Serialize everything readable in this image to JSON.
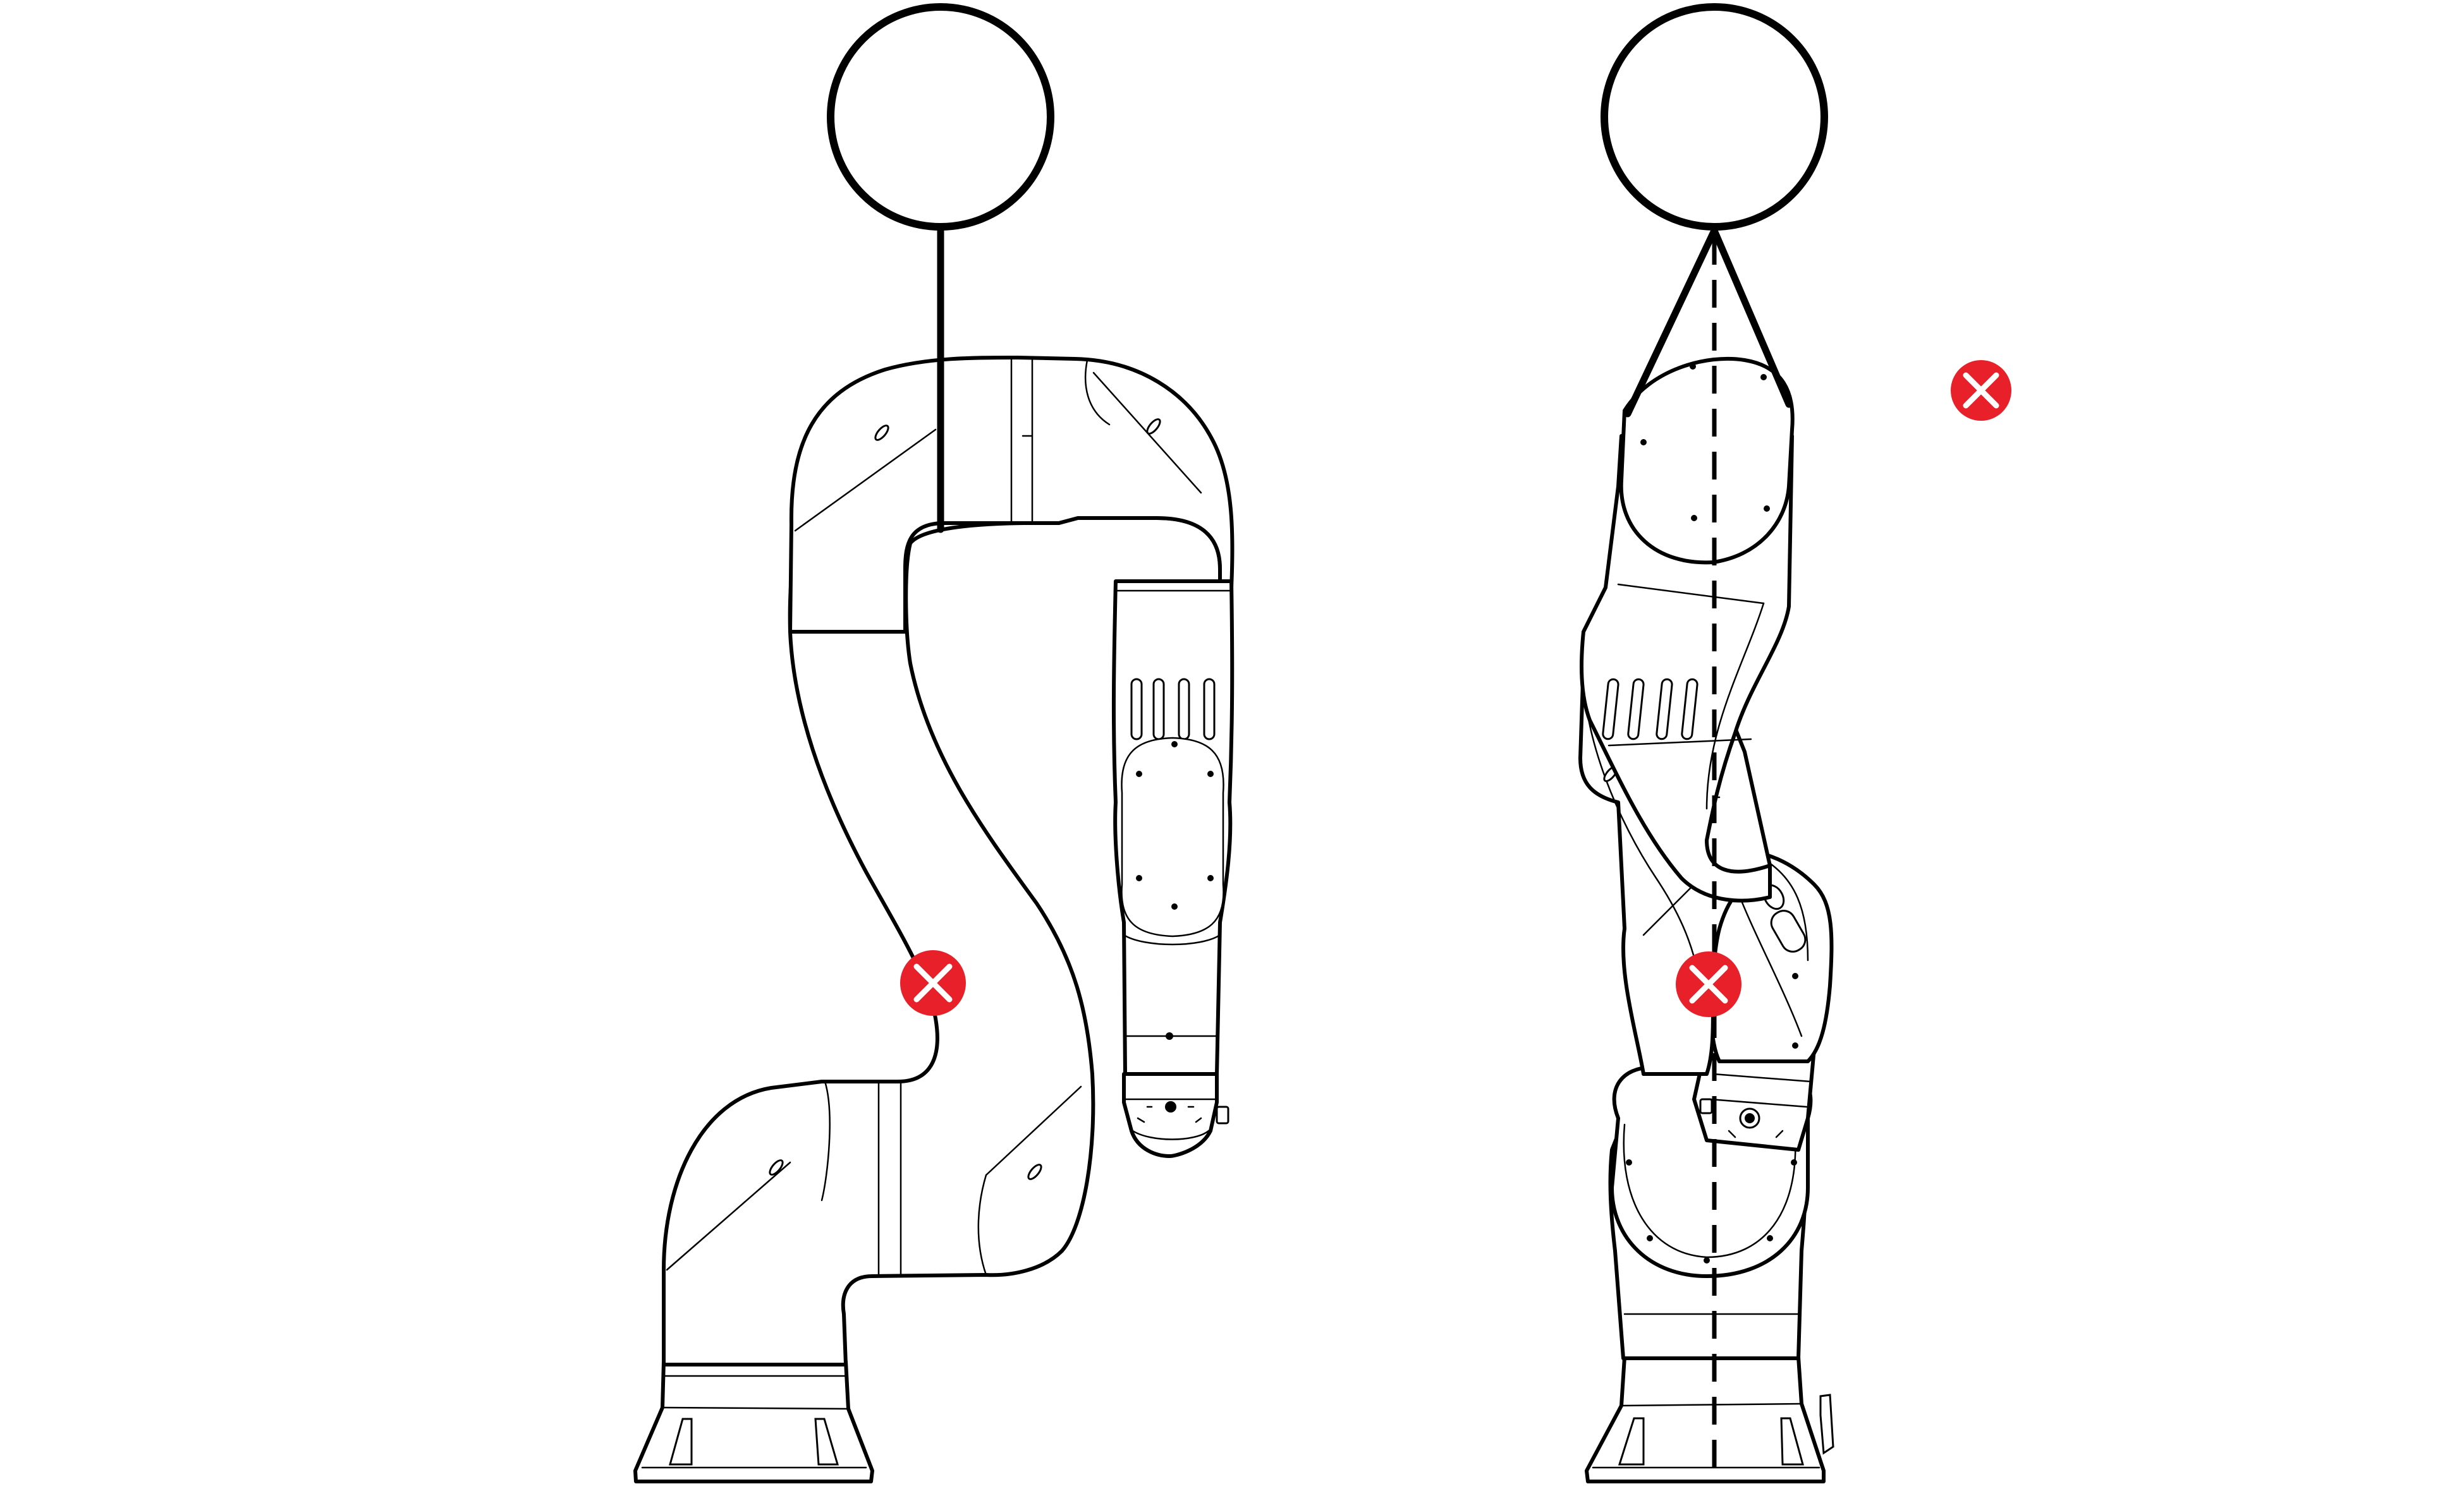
{
  "figure": {
    "views": [
      {
        "id": "left-view",
        "lift_method": "single-sling",
        "crane_hook": "circle",
        "lift_point": "on-upper-arm",
        "prohibited_markers": 1
      },
      {
        "id": "right-view",
        "lift_method": "two-sling-bridle",
        "crane_hook": "circle",
        "center_line": "dashed-vertical",
        "prohibited_markers": 2
      }
    ],
    "colors": {
      "line": "#000000",
      "background": "#ffffff",
      "prohibited_marker": "#e8202a",
      "prohibited_cross": "#ffffff"
    },
    "icons": {
      "prohibited": "x-in-circle-icon",
      "crane_hook": "hook-ring-icon"
    }
  }
}
